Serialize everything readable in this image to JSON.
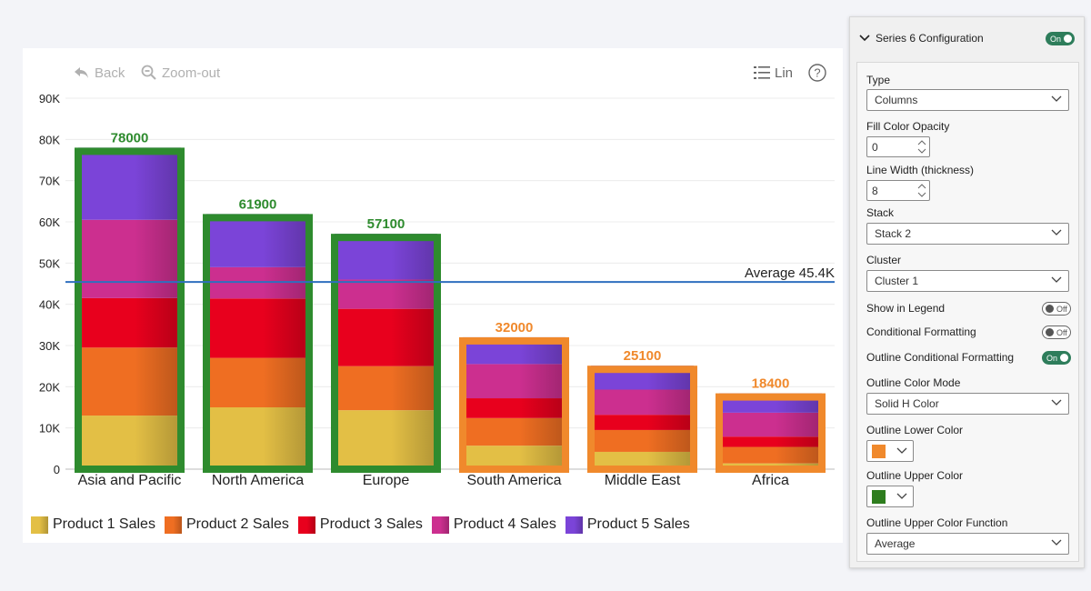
{
  "toolbar": {
    "back_label": "Back",
    "zoom_out_label": "Zoom-out",
    "scale_label": "Lin",
    "help_label": "?"
  },
  "chart_data": {
    "type": "bar",
    "stacked": true,
    "categories": [
      "Asia and Pacific",
      "North America",
      "Europe",
      "South America",
      "Middle East",
      "Africa"
    ],
    "series": [
      {
        "name": "Product 1 Sales",
        "values": [
          13000,
          15000,
          14300,
          5700,
          4200,
          1400
        ],
        "color": "#e3bf45"
      },
      {
        "name": "Product 2 Sales",
        "values": [
          16500,
          12000,
          10700,
          6700,
          5300,
          4000
        ],
        "color": "#ef6e22"
      },
      {
        "name": "Product 3 Sales",
        "values": [
          12000,
          14400,
          13900,
          4800,
          3700,
          2500
        ],
        "color": "#e8001d"
      },
      {
        "name": "Product 4 Sales",
        "values": [
          19000,
          7600,
          7100,
          8300,
          6100,
          5800
        ],
        "color": "#cc2f8f"
      },
      {
        "name": "Product 5 Sales",
        "values": [
          17500,
          12900,
          11100,
          6500,
          5800,
          4700
        ],
        "color": "#7b44d8"
      }
    ],
    "totals": [
      78000,
      61900,
      57100,
      32000,
      25100,
      18400
    ],
    "y_ticks": [
      "0",
      "10K",
      "20K",
      "30K",
      "40K",
      "50K",
      "60K",
      "70K",
      "80K",
      "90K"
    ],
    "ylim": [
      0,
      90000
    ],
    "average": {
      "value": 45400,
      "label": "Average 45.4K",
      "color": "#2e6fbf"
    },
    "outline": {
      "above_color": "#2e8b2e",
      "below_color": "#f0892c",
      "width": 8
    },
    "grid": true,
    "legend_position": "bottom"
  },
  "panel": {
    "title": "Series 6 Configuration",
    "header_toggle": "On",
    "fields": {
      "type_label": "Type",
      "type_value": "Columns",
      "fill_opacity_label": "Fill Color Opacity",
      "fill_opacity_value": "0",
      "line_width_label": "Line Width (thickness)",
      "line_width_value": "8",
      "stack_label": "Stack",
      "stack_value": "Stack 2",
      "cluster_label": "Cluster",
      "cluster_value": "Cluster 1",
      "show_legend_label": "Show in Legend",
      "show_legend_toggle": "Off",
      "cond_format_label": "Conditional Formatting",
      "cond_format_toggle": "Off",
      "outline_cond_label": "Outline Conditional Formatting",
      "outline_cond_toggle": "On",
      "outline_mode_label": "Outline Color Mode",
      "outline_mode_value": "Solid H Color",
      "outline_lower_label": "Outline Lower Color",
      "outline_lower_color": "#f0892c",
      "outline_upper_label": "Outline Upper Color",
      "outline_upper_color": "#2e7d1e",
      "outline_fn_label": "Outline Upper Color Function",
      "outline_fn_value": "Average"
    }
  }
}
